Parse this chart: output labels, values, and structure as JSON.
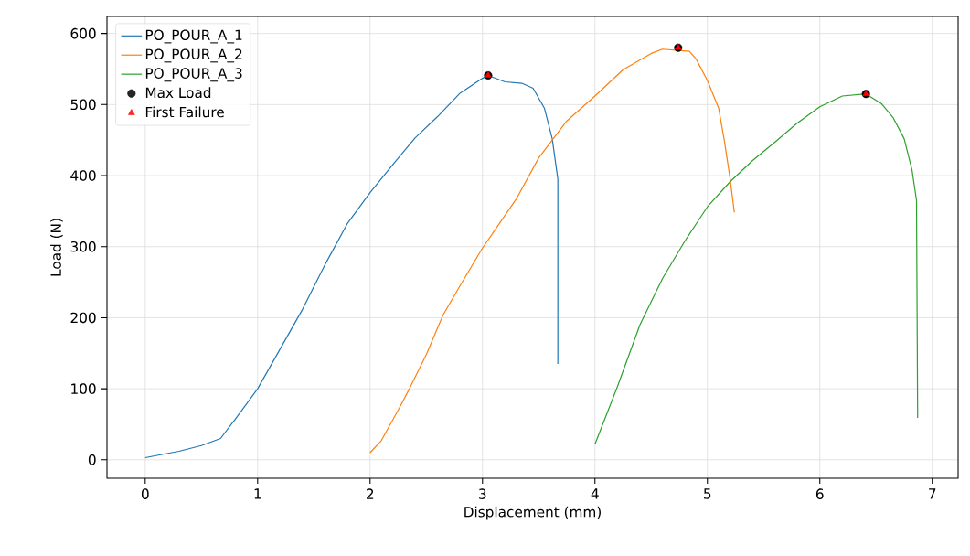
{
  "chart_data": {
    "type": "line",
    "xlabel": "Displacement (mm)",
    "ylabel": "Load (N)",
    "xlim": [
      -0.34,
      7.23
    ],
    "ylim": [
      -26,
      624
    ],
    "xticks": [
      0,
      1,
      2,
      3,
      4,
      5,
      6,
      7
    ],
    "yticks": [
      0,
      100,
      200,
      300,
      400,
      500,
      600
    ],
    "grid": true,
    "legend": "top left",
    "line_style": "solid",
    "series": [
      {
        "name": "PO_POUR_A_1",
        "color": "#1f77b4",
        "x": [
          0,
          0.3,
          0.5,
          0.67,
          0.8,
          1.0,
          1.2,
          1.4,
          1.6,
          1.8,
          2.0,
          2.2,
          2.4,
          2.6,
          2.8,
          3.0,
          3.05,
          3.2,
          3.35,
          3.45,
          3.55,
          3.62,
          3.67,
          3.67
        ],
        "values": [
          3,
          12,
          20,
          30,
          57,
          100,
          156,
          212,
          275,
          333,
          376,
          415,
          453,
          483,
          516,
          537,
          541,
          532,
          530,
          523,
          495,
          452,
          395,
          135
        ]
      },
      {
        "name": "PO_POUR_A_2",
        "color": "#ff7f0e",
        "x": [
          2.0,
          2.1,
          2.25,
          2.35,
          2.5,
          2.65,
          2.8,
          3.0,
          3.3,
          3.5,
          3.75,
          4.0,
          4.25,
          4.5,
          4.6,
          4.84,
          4.9,
          5.0,
          5.1,
          5.15,
          5.2,
          5.24
        ],
        "values": [
          10,
          27,
          70,
          100,
          148,
          204,
          245,
          298,
          367,
          425,
          477,
          512,
          549,
          572,
          578,
          575,
          564,
          534,
          495,
          450,
          398,
          348
        ]
      },
      {
        "name": "PO_POUR_A_3",
        "color": "#2ca02c",
        "x": [
          4.0,
          4.2,
          4.4,
          4.6,
          4.8,
          5.0,
          5.2,
          5.4,
          5.6,
          5.8,
          6.0,
          6.2,
          6.41,
          6.55,
          6.65,
          6.75,
          6.82,
          6.86,
          6.87
        ],
        "values": [
          22,
          103,
          190,
          255,
          308,
          356,
          391,
          421,
          447,
          474,
          497,
          512,
          515,
          501,
          482,
          452,
          408,
          365,
          59
        ]
      },
      {
        "name": "Max Load",
        "type": "scatter",
        "marker": "circle",
        "color": "#000000",
        "x": [
          3.05,
          4.74,
          6.41
        ],
        "values": [
          541,
          580,
          515
        ]
      },
      {
        "name": "First Failure",
        "type": "scatter",
        "marker": "triangle",
        "color": "#ff0000",
        "x": [
          3.05,
          4.74,
          6.41
        ],
        "values": [
          541,
          580,
          515
        ]
      }
    ]
  }
}
